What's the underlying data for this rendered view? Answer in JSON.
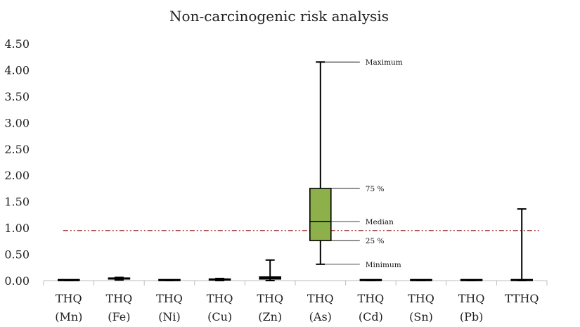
{
  "chart_data": {
    "type": "box",
    "title": "Non-carcinogenic risk analysis",
    "ylim": [
      0,
      4.5
    ],
    "yticks": [
      "0.00",
      "0.50",
      "1.00",
      "1.50",
      "2.00",
      "2.50",
      "3.00",
      "3.50",
      "4.00",
      "4.50"
    ],
    "grid": false,
    "reference_line": {
      "value": 0.95,
      "color": "#9b2a2a"
    },
    "box_color": "#8db04a",
    "categories": [
      {
        "line1": "THQ",
        "line2": "(Mn)",
        "min": 0.0,
        "q1": 0.0,
        "median": 0.0,
        "q3": 0.01,
        "max": 0.01
      },
      {
        "line1": "THQ",
        "line2": "(Fe)",
        "min": 0.01,
        "q1": 0.03,
        "median": 0.04,
        "q3": 0.05,
        "max": 0.06
      },
      {
        "line1": "THQ",
        "line2": "(Ni)",
        "min": 0.0,
        "q1": 0.0,
        "median": 0.0,
        "q3": 0.01,
        "max": 0.01
      },
      {
        "line1": "THQ",
        "line2": "(Cu)",
        "min": 0.0,
        "q1": 0.01,
        "median": 0.02,
        "q3": 0.03,
        "max": 0.04
      },
      {
        "line1": "THQ",
        "line2": "(Zn)",
        "min": 0.0,
        "q1": 0.03,
        "median": 0.05,
        "q3": 0.07,
        "max": 0.39
      },
      {
        "line1": "THQ",
        "line2": "(As)",
        "min": 0.31,
        "q1": 0.76,
        "median": 1.12,
        "q3": 1.75,
        "max": 4.15
      },
      {
        "line1": "THQ",
        "line2": "(Cd)",
        "min": 0.0,
        "q1": 0.0,
        "median": 0.0,
        "q3": 0.0,
        "max": 0.0
      },
      {
        "line1": "THQ",
        "line2": "(Sn)",
        "min": 0.0,
        "q1": 0.0,
        "median": 0.0,
        "q3": 0.01,
        "max": 0.01
      },
      {
        "line1": "THQ",
        "line2": "(Pb)",
        "min": 0.0,
        "q1": 0.0,
        "median": 0.0,
        "q3": 0.0,
        "max": 0.0
      },
      {
        "line1": "TTHQ",
        "line2": "",
        "min": 0.0,
        "q1": 0.0,
        "median": 0.01,
        "q3": 0.02,
        "max": 1.36
      }
    ],
    "annotations": [
      {
        "text": "Maximum",
        "target": "max"
      },
      {
        "text": "75 %",
        "target": "q3"
      },
      {
        "text": "Median",
        "target": "median"
      },
      {
        "text": "25 %",
        "target": "q1"
      },
      {
        "text": "Minimum",
        "target": "min"
      }
    ],
    "annotated_category": 5
  }
}
